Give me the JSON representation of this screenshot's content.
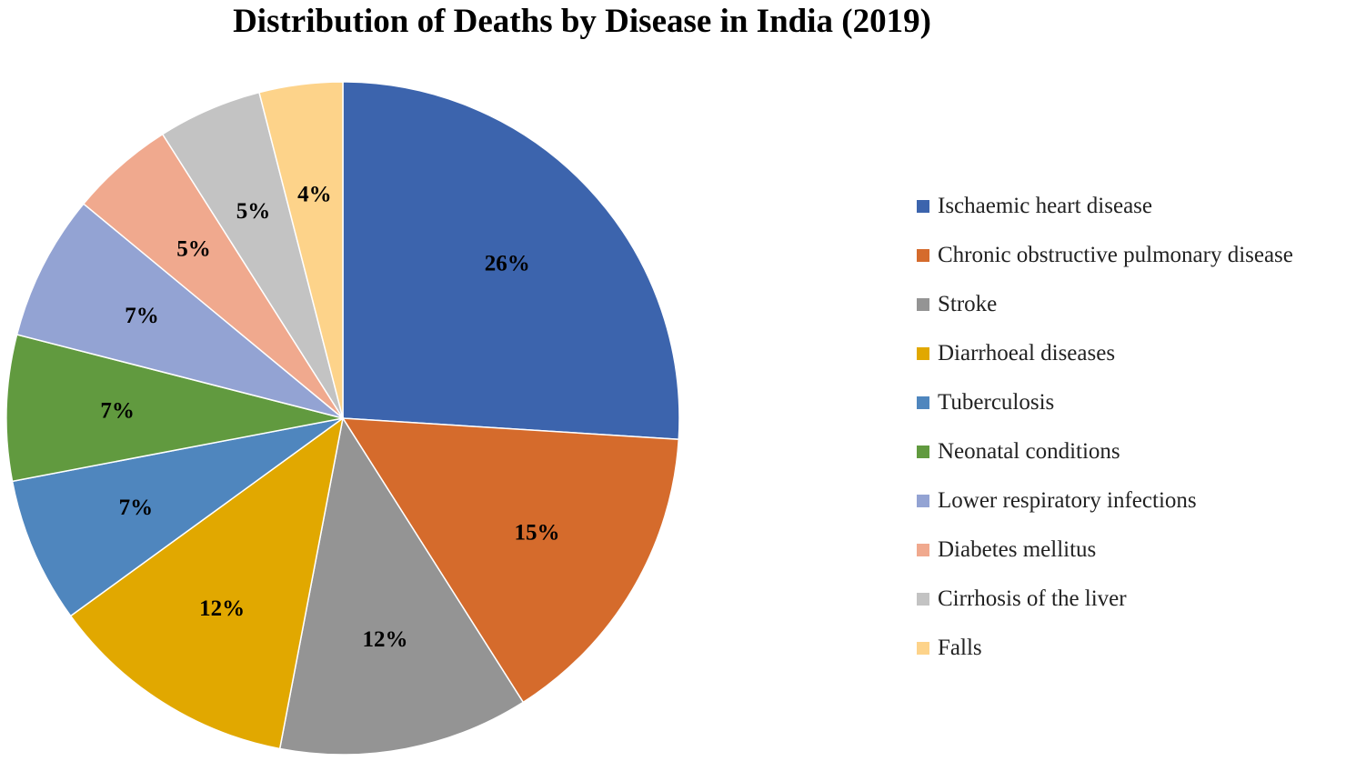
{
  "chart_data": {
    "type": "pie",
    "title": "Distribution of Deaths by Disease in India (2019)",
    "slices": [
      {
        "label": "Ischaemic heart disease",
        "value": 26,
        "display": "26%",
        "color": "#3C64AD"
      },
      {
        "label": "Chronic obstructive pulmonary disease",
        "value": 15,
        "display": "15%",
        "color": "#D56B2C"
      },
      {
        "label": "Stroke",
        "value": 12,
        "display": "12%",
        "color": "#949494"
      },
      {
        "label": "Diarrhoeal diseases",
        "value": 12,
        "display": "12%",
        "color": "#E1A800"
      },
      {
        "label": "Tuberculosis",
        "value": 7,
        "display": "7%",
        "color": "#4F86BE"
      },
      {
        "label": "Neonatal conditions",
        "value": 7,
        "display": "7%",
        "color": "#619A3F"
      },
      {
        "label": "Lower respiratory infections",
        "value": 7,
        "display": "7%",
        "color": "#93A3D3"
      },
      {
        "label": "Diabetes mellitus",
        "value": 5,
        "display": "5%",
        "color": "#F0A98E"
      },
      {
        "label": "Cirrhosis of the liver",
        "value": 5,
        "display": "5%",
        "color": "#C3C3C3"
      },
      {
        "label": "Falls",
        "value": 4,
        "display": "4%",
        "color": "#FDD38A"
      }
    ],
    "legend_position": "right"
  }
}
